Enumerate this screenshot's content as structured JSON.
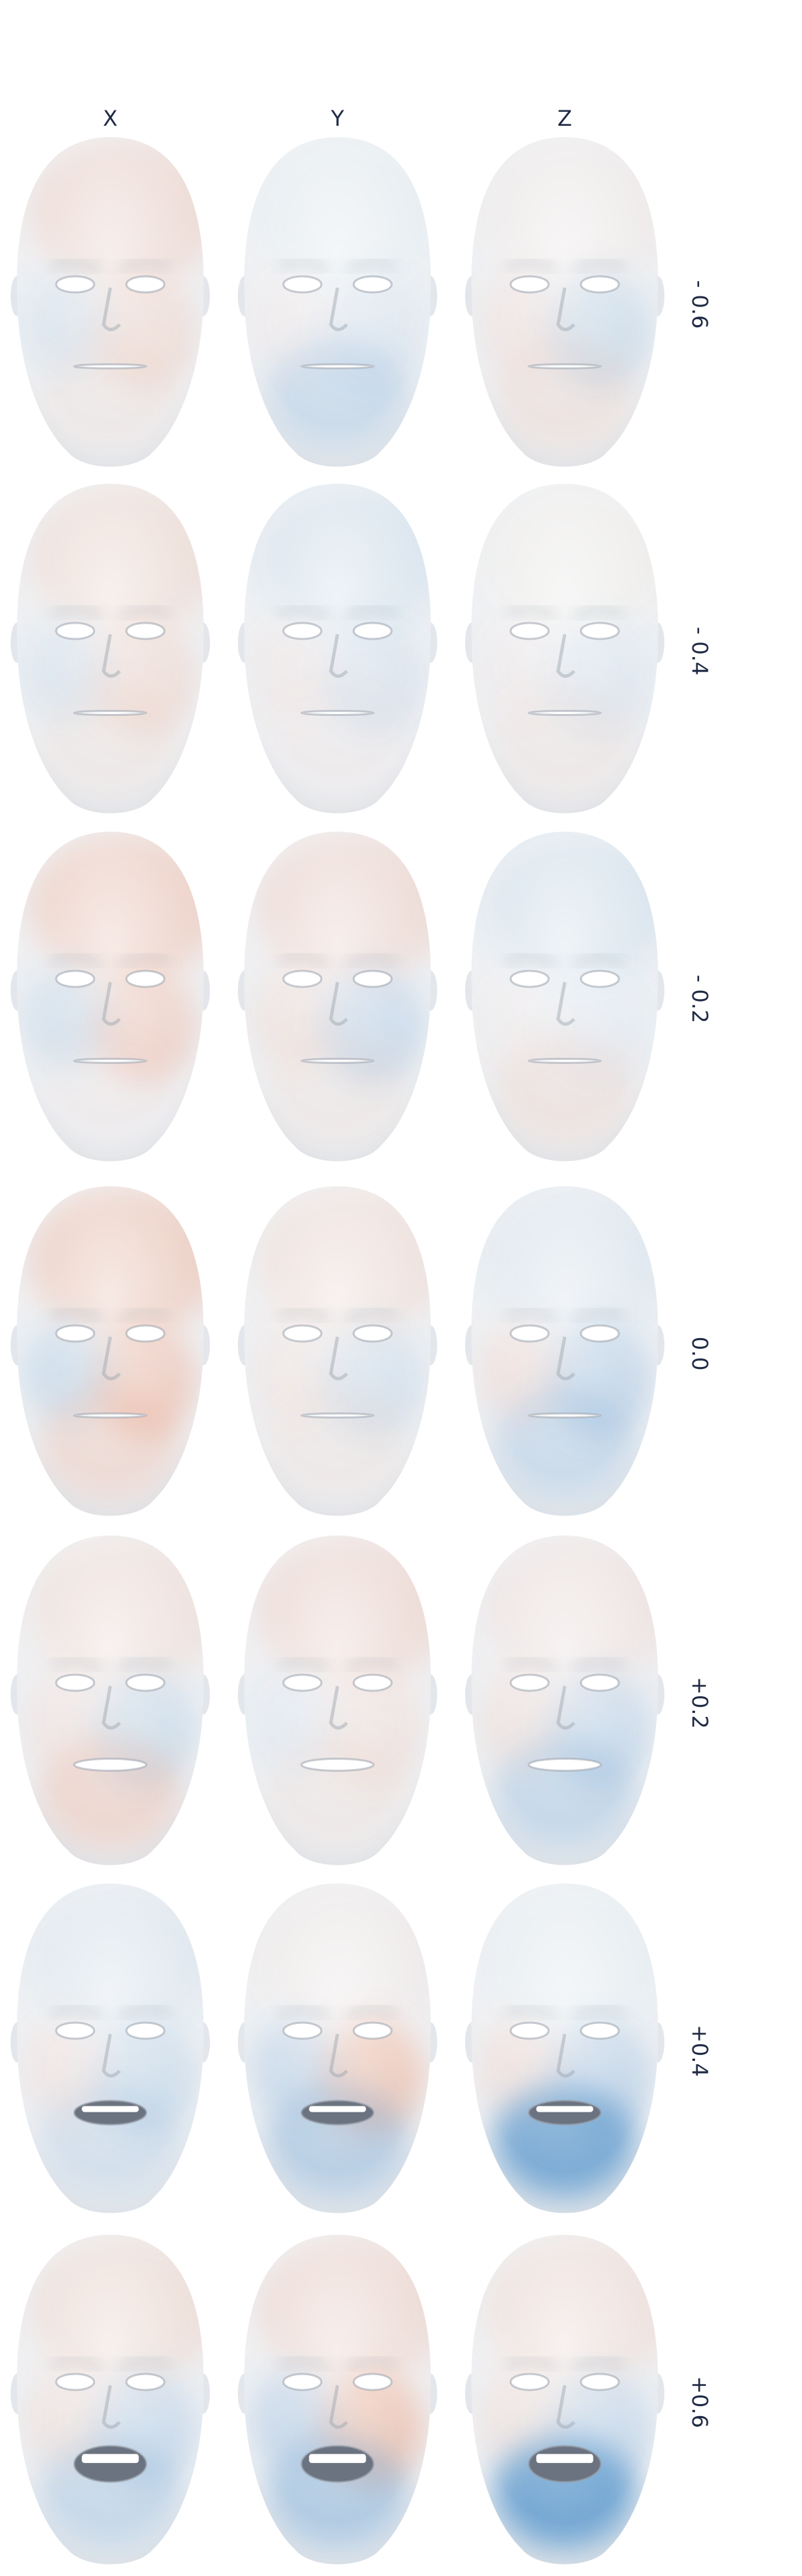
{
  "columns": [
    {
      "label": "X"
    },
    {
      "label": "Y"
    },
    {
      "label": "Z"
    }
  ],
  "rows": [
    {
      "label": "- 0.6"
    },
    {
      "label": "- 0.4"
    },
    {
      "label": "- 0.2"
    },
    {
      "label": "0.0"
    },
    {
      "label": "+0.2"
    },
    {
      "label": "+0.4"
    },
    {
      "label": "+0.6"
    }
  ],
  "colors": {
    "text": "#1f2a44",
    "face_base": "#eef0f3",
    "positive": "#e8835a",
    "negative": "#3f86c4",
    "feature": "#9aa3ad"
  },
  "heatmap_intensity": [
    [
      {
        "up": 0.35,
        "dn": 0.3,
        "mo": 0.1
      },
      {
        "up": -0.05,
        "dn": -0.15,
        "mo": -0.25
      },
      {
        "up": 0.1,
        "dn": -0.3,
        "mo": 0.15
      }
    ],
    [
      {
        "up": 0.3,
        "dn": 0.3,
        "mo": 0.1
      },
      {
        "up": -0.2,
        "dn": -0.2,
        "mo": 0.05
      },
      {
        "up": 0.05,
        "dn": -0.15,
        "mo": 0.1
      }
    ],
    [
      {
        "up": 0.5,
        "dn": 0.45,
        "mo": 0.05
      },
      {
        "up": 0.35,
        "dn": -0.35,
        "mo": 0.1
      },
      {
        "up": -0.2,
        "dn": -0.1,
        "mo": 0.15
      }
    ],
    [
      {
        "up": 0.55,
        "dn": 0.55,
        "mo": 0.25
      },
      {
        "up": 0.25,
        "dn": -0.25,
        "mo": 0.1
      },
      {
        "up": -0.15,
        "dn": -0.4,
        "mo": -0.25
      }
    ],
    [
      {
        "up": 0.25,
        "dn": -0.3,
        "mo": 0.3
      },
      {
        "up": 0.35,
        "dn": 0.2,
        "mo": 0.1
      },
      {
        "up": 0.2,
        "dn": -0.35,
        "mo": -0.3
      }
    ],
    [
      {
        "up": -0.15,
        "dn": -0.3,
        "mo": -0.2
      },
      {
        "up": 0.1,
        "dn": 0.6,
        "mo": -0.4
      },
      {
        "up": -0.05,
        "dn": -0.4,
        "mo": -0.85
      }
    ],
    [
      {
        "up": 0.3,
        "dn": -0.35,
        "mo": -0.3
      },
      {
        "up": 0.35,
        "dn": 0.65,
        "mo": -0.45
      },
      {
        "up": 0.25,
        "dn": -0.35,
        "mo": -0.9
      }
    ]
  ]
}
